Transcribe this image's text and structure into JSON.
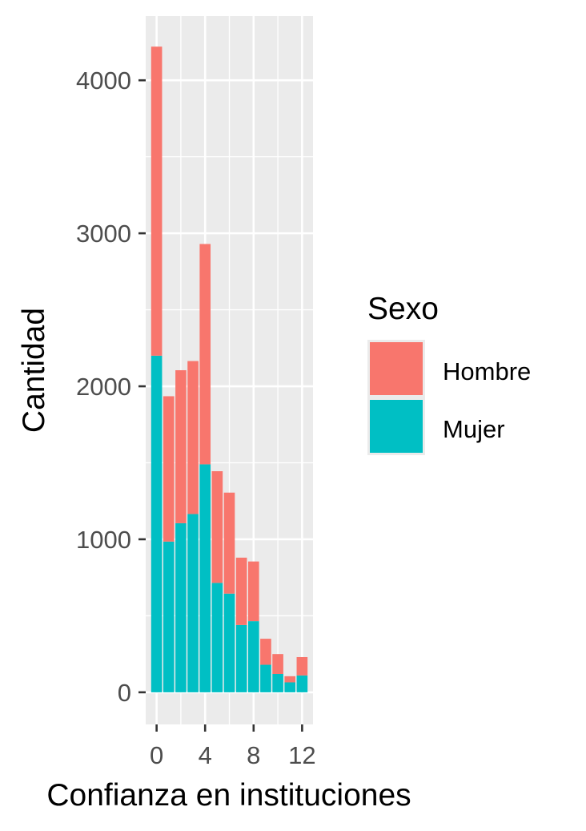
{
  "chart_data": {
    "type": "bar",
    "stacked": true,
    "xlabel": "Confianza en instituciones",
    "ylabel": "Cantidad",
    "x": [
      0,
      1,
      2,
      3,
      4,
      5,
      6,
      7,
      8,
      9,
      10,
      11,
      12
    ],
    "series": [
      {
        "name": "Hombre",
        "color": "#F8766D",
        "values": [
          2020,
          950,
          1000,
          1000,
          1440,
          730,
          660,
          440,
          390,
          170,
          130,
          40,
          120
        ]
      },
      {
        "name": "Mujer",
        "color": "#00BFC4",
        "values": [
          2200,
          985,
          1105,
          1165,
          1490,
          715,
          645,
          440,
          465,
          180,
          120,
          65,
          110
        ]
      }
    ],
    "xticks": [
      0,
      4,
      8,
      12
    ],
    "yticks": [
      0,
      1000,
      2000,
      3000,
      4000
    ],
    "xlim": [
      -0.9,
      12.9
    ],
    "ylim": [
      -210,
      4420
    ],
    "grid": true,
    "legend": {
      "title": "Sexo",
      "position": "right"
    }
  }
}
